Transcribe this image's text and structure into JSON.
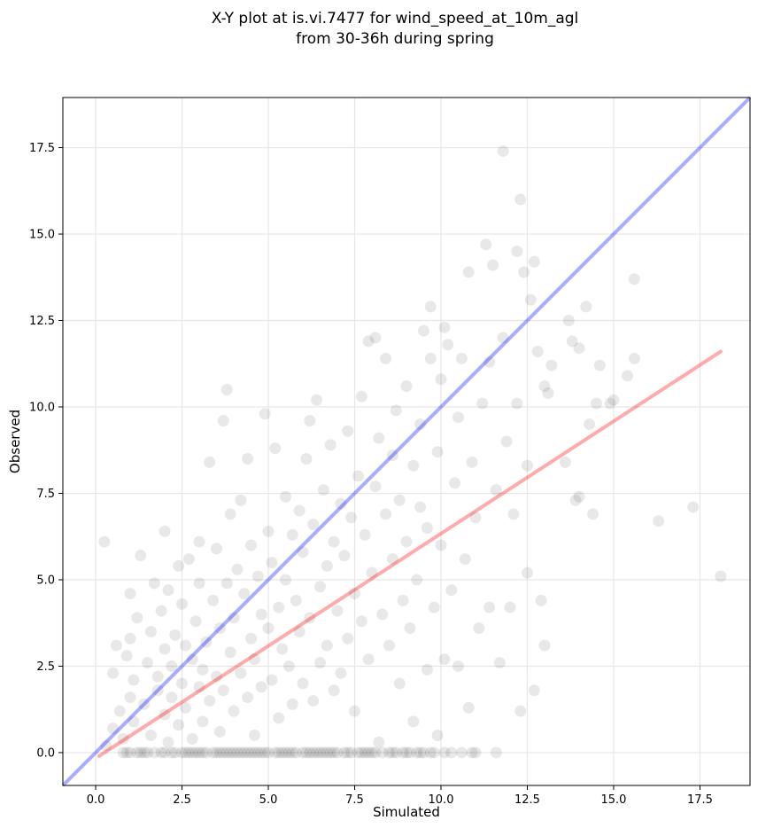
{
  "chart_data": {
    "type": "scatter",
    "title": "X-Y plot at is.vi.7477 for wind_speed_at_10m_agl",
    "subtitle": "from 30-36h during spring",
    "xlabel": "Simulated",
    "ylabel": "Observed",
    "xlim": [
      -0.95,
      18.95
    ],
    "ylim": [
      -0.95,
      18.95
    ],
    "xticks": [
      0.0,
      2.5,
      5.0,
      7.5,
      10.0,
      12.5,
      15.0,
      17.5
    ],
    "yticks": [
      0.0,
      2.5,
      5.0,
      7.5,
      10.0,
      12.5,
      15.0,
      17.5
    ],
    "xtick_labels": [
      "0.0",
      "2.5",
      "5.0",
      "7.5",
      "10.0",
      "12.5",
      "15.0",
      "17.5"
    ],
    "ytick_labels": [
      "0.0",
      "2.5",
      "5.0",
      "7.5",
      "10.0",
      "12.5",
      "15.0",
      "17.5"
    ],
    "grid": true,
    "colors": {
      "points": "#000000",
      "identity_line": "#0000ff",
      "fit_line": "#ff0000",
      "grid": "#e6e6e6"
    },
    "identity_line": {
      "x": [
        -0.95,
        18.95
      ],
      "y": [
        -0.95,
        18.95
      ]
    },
    "fit_line": {
      "x": [
        0.1,
        18.1
      ],
      "y": [
        -0.1,
        11.6
      ]
    },
    "points": [
      [
        0.25,
        6.1
      ],
      [
        0.3,
        0.2
      ],
      [
        0.5,
        0.7
      ],
      [
        0.5,
        2.3
      ],
      [
        0.6,
        3.1
      ],
      [
        0.7,
        1.2
      ],
      [
        0.8,
        0.0
      ],
      [
        0.8,
        0.4
      ],
      [
        0.9,
        0.0
      ],
      [
        0.9,
        2.8
      ],
      [
        1.0,
        0.0
      ],
      [
        1.0,
        1.6
      ],
      [
        1.0,
        3.3
      ],
      [
        1.0,
        4.6
      ],
      [
        1.1,
        0.9
      ],
      [
        1.1,
        2.1
      ],
      [
        1.2,
        3.9
      ],
      [
        1.3,
        5.7
      ],
      [
        1.3,
        0.0
      ],
      [
        1.4,
        1.4
      ],
      [
        1.5,
        2.6
      ],
      [
        1.5,
        0.0
      ],
      [
        1.6,
        0.5
      ],
      [
        1.6,
        3.5
      ],
      [
        1.7,
        4.9
      ],
      [
        1.7,
        0.0
      ],
      [
        1.8,
        1.8
      ],
      [
        1.8,
        2.2
      ],
      [
        1.9,
        0.0
      ],
      [
        1.9,
        4.1
      ],
      [
        2.0,
        0.0
      ],
      [
        2.0,
        1.1
      ],
      [
        2.0,
        3.0
      ],
      [
        2.0,
        6.4
      ],
      [
        2.1,
        0.3
      ],
      [
        2.1,
        4.7
      ],
      [
        2.2,
        0.0
      ],
      [
        2.2,
        2.5
      ],
      [
        2.2,
        1.6
      ],
      [
        2.3,
        3.4
      ],
      [
        2.3,
        0.0
      ],
      [
        2.4,
        5.4
      ],
      [
        2.4,
        0.8
      ],
      [
        2.5,
        2.0
      ],
      [
        2.5,
        0.0
      ],
      [
        2.5,
        4.3
      ],
      [
        2.6,
        1.3
      ],
      [
        2.6,
        3.1
      ],
      [
        2.7,
        0.0
      ],
      [
        2.7,
        5.6
      ],
      [
        2.8,
        0.4
      ],
      [
        2.8,
        2.7
      ],
      [
        2.9,
        0.0
      ],
      [
        2.9,
        3.8
      ],
      [
        3.0,
        1.9
      ],
      [
        3.0,
        0.0
      ],
      [
        3.0,
        4.9
      ],
      [
        3.0,
        6.1
      ],
      [
        3.1,
        0.9
      ],
      [
        3.1,
        2.4
      ],
      [
        3.2,
        0.0
      ],
      [
        3.2,
        3.2
      ],
      [
        3.3,
        1.5
      ],
      [
        3.3,
        8.4
      ],
      [
        3.4,
        0.0
      ],
      [
        3.4,
        4.4
      ],
      [
        3.5,
        2.2
      ],
      [
        3.5,
        5.9
      ],
      [
        3.6,
        0.0
      ],
      [
        3.6,
        0.6
      ],
      [
        3.6,
        3.6
      ],
      [
        3.7,
        1.8
      ],
      [
        3.7,
        9.6
      ],
      [
        3.8,
        0.0
      ],
      [
        3.8,
        4.9
      ],
      [
        3.8,
        10.5
      ],
      [
        3.9,
        2.9
      ],
      [
        3.9,
        6.9
      ],
      [
        4.0,
        0.0
      ],
      [
        4.0,
        1.2
      ],
      [
        4.0,
        3.9
      ],
      [
        4.1,
        5.3
      ],
      [
        4.1,
        0.0
      ],
      [
        4.2,
        2.3
      ],
      [
        4.2,
        7.3
      ],
      [
        4.3,
        0.0
      ],
      [
        4.3,
        4.6
      ],
      [
        4.4,
        8.5
      ],
      [
        4.4,
        1.6
      ],
      [
        4.5,
        0.0
      ],
      [
        4.5,
        3.3
      ],
      [
        4.5,
        6.0
      ],
      [
        4.6,
        0.5
      ],
      [
        4.6,
        2.7
      ],
      [
        4.7,
        0.0
      ],
      [
        4.7,
        5.1
      ],
      [
        4.8,
        4.0
      ],
      [
        4.8,
        1.9
      ],
      [
        4.9,
        0.0
      ],
      [
        4.9,
        9.8
      ],
      [
        5.0,
        3.6
      ],
      [
        5.0,
        6.4
      ],
      [
        5.0,
        0.0
      ],
      [
        5.1,
        2.1
      ],
      [
        5.1,
        5.5
      ],
      [
        5.2,
        0.0
      ],
      [
        5.2,
        8.8
      ],
      [
        5.3,
        1.0
      ],
      [
        5.3,
        4.2
      ],
      [
        5.4,
        0.0
      ],
      [
        5.4,
        3.0
      ],
      [
        5.5,
        7.4
      ],
      [
        5.5,
        5.0
      ],
      [
        5.6,
        0.0
      ],
      [
        5.6,
        2.5
      ],
      [
        5.7,
        6.3
      ],
      [
        5.7,
        1.4
      ],
      [
        5.8,
        0.0
      ],
      [
        5.8,
        4.4
      ],
      [
        5.9,
        3.5
      ],
      [
        5.9,
        7.0
      ],
      [
        6.0,
        0.0
      ],
      [
        6.0,
        2.0
      ],
      [
        6.0,
        5.8
      ],
      [
        6.1,
        8.5
      ],
      [
        6.2,
        0.0
      ],
      [
        6.2,
        3.9
      ],
      [
        6.2,
        9.6
      ],
      [
        6.3,
        1.5
      ],
      [
        6.3,
        6.6
      ],
      [
        6.4,
        0.0
      ],
      [
        6.4,
        10.2
      ],
      [
        6.5,
        4.8
      ],
      [
        6.5,
        2.6
      ],
      [
        6.6,
        0.0
      ],
      [
        6.6,
        7.6
      ],
      [
        6.7,
        3.1
      ],
      [
        6.7,
        5.4
      ],
      [
        6.8,
        0.0
      ],
      [
        6.8,
        8.9
      ],
      [
        6.9,
        1.8
      ],
      [
        6.9,
        6.1
      ],
      [
        7.0,
        0.0
      ],
      [
        7.0,
        4.1
      ],
      [
        7.1,
        7.2
      ],
      [
        7.1,
        2.3
      ],
      [
        7.2,
        0.0
      ],
      [
        7.2,
        5.7
      ],
      [
        7.3,
        9.3
      ],
      [
        7.3,
        3.3
      ],
      [
        7.4,
        0.0
      ],
      [
        7.4,
        6.8
      ],
      [
        7.5,
        1.2
      ],
      [
        7.5,
        4.6
      ],
      [
        7.6,
        0.0
      ],
      [
        7.6,
        8.0
      ],
      [
        7.7,
        10.3
      ],
      [
        7.7,
        3.8
      ],
      [
        7.8,
        0.0
      ],
      [
        7.8,
        6.3
      ],
      [
        7.9,
        11.9
      ],
      [
        7.9,
        2.7
      ],
      [
        8.0,
        0.0
      ],
      [
        8.0,
        5.2
      ],
      [
        8.1,
        12.0
      ],
      [
        8.1,
        7.7
      ],
      [
        8.2,
        0.3
      ],
      [
        8.2,
        9.1
      ],
      [
        8.3,
        4.0
      ],
      [
        8.3,
        0.0
      ],
      [
        8.4,
        6.9
      ],
      [
        8.4,
        11.4
      ],
      [
        8.5,
        3.1
      ],
      [
        8.5,
        0.0
      ],
      [
        8.6,
        8.6
      ],
      [
        8.6,
        5.6
      ],
      [
        8.7,
        9.9
      ],
      [
        8.7,
        0.0
      ],
      [
        8.8,
        2.0
      ],
      [
        8.8,
        7.3
      ],
      [
        8.9,
        4.4
      ],
      [
        8.9,
        0.0
      ],
      [
        9.0,
        10.6
      ],
      [
        9.0,
        6.1
      ],
      [
        9.1,
        0.0
      ],
      [
        9.1,
        3.6
      ],
      [
        9.2,
        8.3
      ],
      [
        9.2,
        0.9
      ],
      [
        9.3,
        5.0
      ],
      [
        9.3,
        0.0
      ],
      [
        9.4,
        9.5
      ],
      [
        9.4,
        7.1
      ],
      [
        9.5,
        12.2
      ],
      [
        9.5,
        0.0
      ],
      [
        9.6,
        2.4
      ],
      [
        9.6,
        6.5
      ],
      [
        9.7,
        11.4
      ],
      [
        9.7,
        12.9
      ],
      [
        9.8,
        4.2
      ],
      [
        9.8,
        0.0
      ],
      [
        9.9,
        8.7
      ],
      [
        9.9,
        0.5
      ],
      [
        10.0,
        10.8
      ],
      [
        10.0,
        6.0
      ],
      [
        10.1,
        2.7
      ],
      [
        10.1,
        12.3
      ],
      [
        10.2,
        11.8
      ],
      [
        10.3,
        4.7
      ],
      [
        10.3,
        0.0
      ],
      [
        10.4,
        7.8
      ],
      [
        10.5,
        9.7
      ],
      [
        10.5,
        2.5
      ],
      [
        10.6,
        11.4
      ],
      [
        10.7,
        5.6
      ],
      [
        10.8,
        1.3
      ],
      [
        10.8,
        13.9
      ],
      [
        10.9,
        8.4
      ],
      [
        11.0,
        0.0
      ],
      [
        11.0,
        6.8
      ],
      [
        11.1,
        3.6
      ],
      [
        11.2,
        10.1
      ],
      [
        11.3,
        14.7
      ],
      [
        11.4,
        11.3
      ],
      [
        11.4,
        4.2
      ],
      [
        11.5,
        14.1
      ],
      [
        11.6,
        7.6
      ],
      [
        11.7,
        2.6
      ],
      [
        11.8,
        12.0
      ],
      [
        11.8,
        17.4
      ],
      [
        11.9,
        9.0
      ],
      [
        12.0,
        4.2
      ],
      [
        12.1,
        6.9
      ],
      [
        12.2,
        14.5
      ],
      [
        12.2,
        10.1
      ],
      [
        12.3,
        1.2
      ],
      [
        12.3,
        16.0
      ],
      [
        12.4,
        13.9
      ],
      [
        12.5,
        5.2
      ],
      [
        12.5,
        8.3
      ],
      [
        12.6,
        13.1
      ],
      [
        12.7,
        14.2
      ],
      [
        12.7,
        1.8
      ],
      [
        12.8,
        11.6
      ],
      [
        12.9,
        4.4
      ],
      [
        13.0,
        3.1
      ],
      [
        13.0,
        10.6
      ],
      [
        13.1,
        10.4
      ],
      [
        13.2,
        11.2
      ],
      [
        13.6,
        8.4
      ],
      [
        13.7,
        12.5
      ],
      [
        13.8,
        11.9
      ],
      [
        13.9,
        7.3
      ],
      [
        14.0,
        11.7
      ],
      [
        14.0,
        7.4
      ],
      [
        14.2,
        12.9
      ],
      [
        14.3,
        9.5
      ],
      [
        14.4,
        6.9
      ],
      [
        14.5,
        10.1
      ],
      [
        14.6,
        11.2
      ],
      [
        14.9,
        10.1
      ],
      [
        15.0,
        10.2
      ],
      [
        15.4,
        10.9
      ],
      [
        15.6,
        11.4
      ],
      [
        15.6,
        13.7
      ],
      [
        16.3,
        6.7
      ],
      [
        17.3,
        7.1
      ],
      [
        18.1,
        5.1
      ],
      [
        1.2,
        0.0
      ],
      [
        1.4,
        0.0
      ],
      [
        2.6,
        0.0
      ],
      [
        2.8,
        0.0
      ],
      [
        3.1,
        0.0
      ],
      [
        3.5,
        0.0
      ],
      [
        3.7,
        0.0
      ],
      [
        3.9,
        0.0
      ],
      [
        4.2,
        0.0
      ],
      [
        4.4,
        0.0
      ],
      [
        4.6,
        0.0
      ],
      [
        4.8,
        0.0
      ],
      [
        5.3,
        0.0
      ],
      [
        5.5,
        0.0
      ],
      [
        5.7,
        0.0
      ],
      [
        6.1,
        0.0
      ],
      [
        6.3,
        0.0
      ],
      [
        6.5,
        0.0
      ],
      [
        6.7,
        0.0
      ],
      [
        6.9,
        0.0
      ],
      [
        7.3,
        0.0
      ],
      [
        7.7,
        0.0
      ],
      [
        7.9,
        0.0
      ],
      [
        8.1,
        0.0
      ],
      [
        8.6,
        0.0
      ],
      [
        9.0,
        0.0
      ],
      [
        9.4,
        0.0
      ],
      [
        9.7,
        0.0
      ],
      [
        10.1,
        0.0
      ],
      [
        10.6,
        0.0
      ],
      [
        10.9,
        0.0
      ],
      [
        11.6,
        0.0
      ]
    ]
  }
}
